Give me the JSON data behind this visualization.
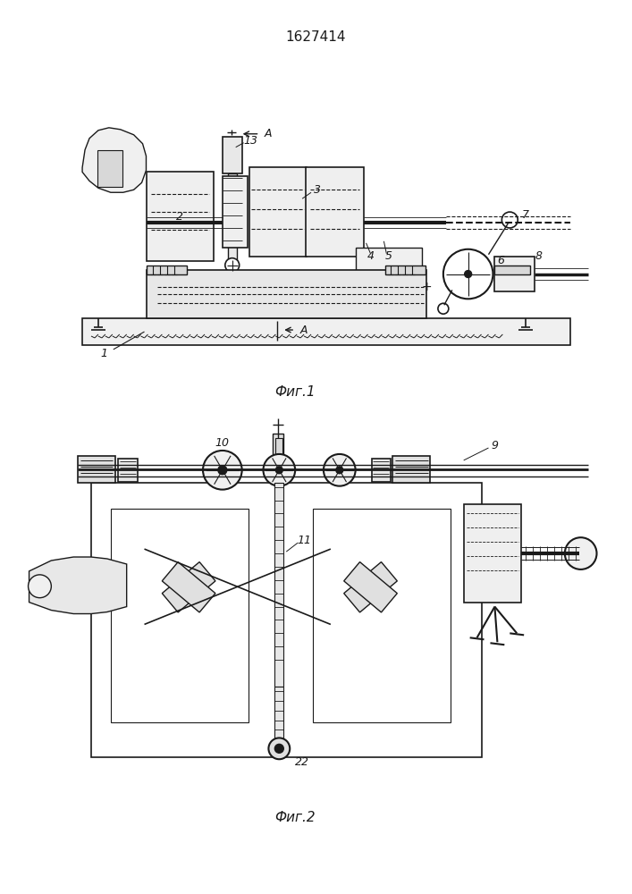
{
  "title": "1627414",
  "fig1_caption": "Фиг.1",
  "fig2_caption": "Фиг.2",
  "bg_color": "#ffffff",
  "lc": "#1a1a1a",
  "lw": 1.0
}
